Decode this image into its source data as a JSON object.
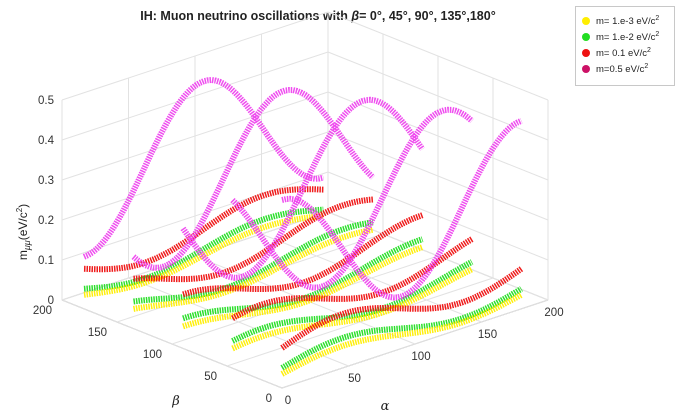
{
  "chart_data": {
    "type": "line",
    "title_prefix": "IH: Muon neutrino oscillations with ",
    "title_symbol": "β",
    "title_suffix": "= 0°, 45°, 90°, 135°,180°",
    "xlabel": "α",
    "ylabel": "β",
    "zlabel_main": "m",
    "zlabel_sub": "μμ",
    "zlabel_unit": "(eV/c",
    "zlabel_sup": "2",
    "zlabel_close": ")",
    "xlim": [
      0,
      200
    ],
    "ylim": [
      0,
      200
    ],
    "zlim": [
      0,
      0.5
    ],
    "x_ticks": [
      "0",
      "50",
      "100",
      "150",
      "200"
    ],
    "y_ticks": [
      "0",
      "50",
      "100",
      "150",
      "200"
    ],
    "z_ticks": [
      "0",
      "0.1",
      "0.2",
      "0.3",
      "0.4",
      "0.5"
    ],
    "grid": true,
    "legend_position": "top-right",
    "beta_values": [
      0,
      45,
      90,
      135,
      180
    ],
    "series": [
      {
        "name": "m= 1.e-3 eV/c",
        "sup": "2",
        "color": "#ffee00",
        "mass": 0.001,
        "note_shape": "≈0.02–0.06 mμμ across α"
      },
      {
        "name": "m= 1.e-2 eV/c",
        "sup": "2",
        "color": "#22dd22",
        "mass": 0.01
      },
      {
        "name": "m= 0.1 eV/c",
        "sup": "2",
        "color": "#ee1111",
        "mass": 0.1
      },
      {
        "name": "m=0.5 eV/c",
        "sup": "2",
        "color": "#cc1166",
        "mass": 0.5,
        "line_color": "#ee44ee"
      }
    ]
  }
}
